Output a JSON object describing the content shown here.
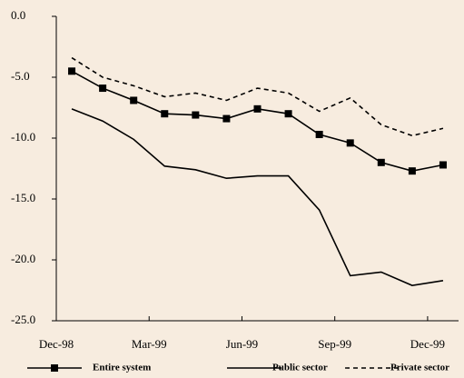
{
  "chart_data": {
    "type": "line",
    "categories": [
      "Dec-98",
      null,
      null,
      "Mar-99",
      null,
      null,
      "Jun-99",
      null,
      null,
      "Sep-99",
      null,
      null,
      "Dec-99"
    ],
    "series": [
      {
        "name": "Entire system",
        "color": "#000000",
        "style": "marker",
        "values": [
          -4.5,
          -5.9,
          -6.9,
          -8.0,
          -8.1,
          -8.4,
          -7.6,
          -8.0,
          -9.7,
          -10.4,
          -12.0,
          -12.7,
          -12.2
        ]
      },
      {
        "name": "Public sector",
        "color": "#000000",
        "style": "solid",
        "values": [
          -7.6,
          -8.6,
          -10.1,
          -12.3,
          -12.6,
          -13.3,
          -13.1,
          -13.1,
          -15.9,
          -21.3,
          -21.0,
          -22.1,
          -21.7
        ]
      },
      {
        "name": "Private sector",
        "color": "#000000",
        "style": "dashed",
        "values": [
          -3.4,
          -5.0,
          -5.7,
          -6.6,
          -6.3,
          -6.9,
          -5.9,
          -6.3,
          -7.8,
          -6.7,
          -8.9,
          -9.8,
          -9.2
        ]
      }
    ],
    "ylim": [
      -25,
      0
    ],
    "yticks": [
      {
        "value": 0,
        "label": "0.0"
      },
      {
        "value": -5,
        "label": "-5.0"
      },
      {
        "value": -10,
        "label": "-10.0"
      },
      {
        "value": -15,
        "label": "-15.0"
      },
      {
        "value": -20,
        "label": "-20.0"
      },
      {
        "value": -25,
        "label": "-25.0"
      }
    ],
    "legend": "bottom"
  }
}
